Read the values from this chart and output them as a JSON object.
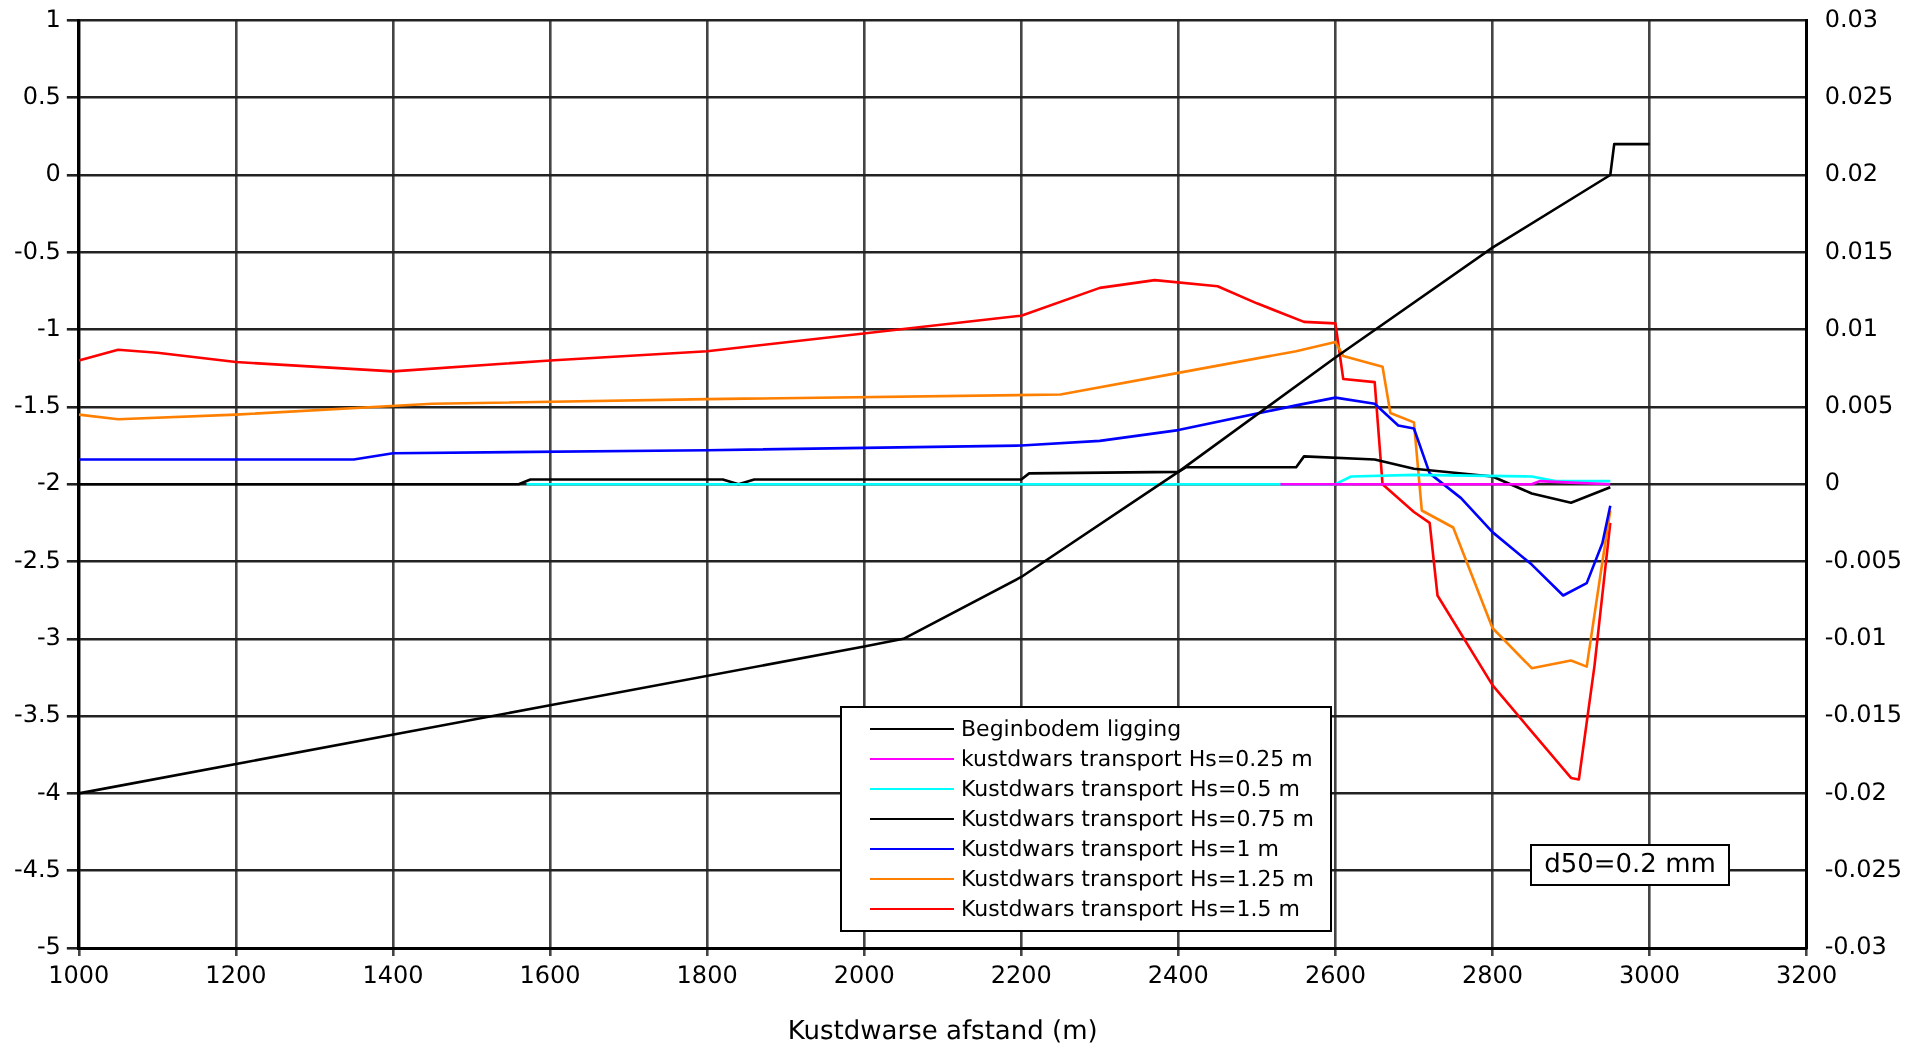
{
  "chart_data": {
    "type": "line",
    "xlabel": "Kustdwarse afstand (m)",
    "xlim": [
      1000,
      3200
    ],
    "xticks": [
      1000,
      1200,
      1400,
      1600,
      1800,
      2000,
      2200,
      2400,
      2600,
      2800,
      3000,
      3200
    ],
    "ylim": [
      -5,
      1
    ],
    "yticks": [
      -5,
      -4.5,
      -4,
      -3.5,
      -3,
      -2.5,
      -2,
      -1.5,
      -1,
      -0.5,
      0,
      0.5,
      1
    ],
    "y2lim": [
      -0.03,
      0.03
    ],
    "y2ticks": [
      -0.03,
      -0.025,
      -0.02,
      -0.015,
      -0.01,
      -0.005,
      0,
      0.005,
      0.01,
      0.015,
      0.02,
      0.025,
      0.03
    ],
    "grid": true,
    "legend": "bottom",
    "marker": "none",
    "annotations": [
      "d50=0.2 mm"
    ],
    "series": [
      {
        "name": "Beginbodem ligging",
        "color": "#000000",
        "x": [
          1000,
          1600,
          2000,
          2050,
          2200,
          2400,
          2600,
          2800,
          2950,
          2955,
          3000
        ],
        "values": [
          -4,
          -3.43,
          -3.05,
          -3.0,
          -2.6,
          -1.92,
          -1.18,
          -0.47,
          0,
          0.2,
          0.2
        ]
      },
      {
        "name": "kustdwars transport Hs=0.25 m",
        "color": "#ff00ff",
        "axis": "y2",
        "x": [
          2530,
          2850,
          2860,
          2900,
          2950
        ],
        "values": [
          0,
          0,
          0.0002,
          0.0001,
          0
        ]
      },
      {
        "name": "Kustdwars transport Hs=0.5 m",
        "color": "#00ffff",
        "axis": "y2",
        "x": [
          1570,
          2600,
          2620,
          2700,
          2850,
          2880,
          2950
        ],
        "values": [
          0,
          0,
          0.0005,
          0.0006,
          0.0005,
          0.0002,
          0.0002
        ]
      },
      {
        "name": "Kustdwars transport Hs=0.75 m",
        "color": "#000000",
        "axis": "y2",
        "x": [
          1000,
          1560,
          1575,
          1820,
          1840,
          1860,
          2200,
          2210,
          2400,
          2410,
          2550,
          2560,
          2650,
          2700,
          2800,
          2850,
          2900,
          2950
        ],
        "values": [
          0,
          0,
          0.0003,
          0.0003,
          0,
          0.0003,
          0.0003,
          0.0007,
          0.0008,
          0.0011,
          0.0011,
          0.0018,
          0.0016,
          0.001,
          0.0005,
          -0.0006,
          -0.0012,
          -0.0002
        ]
      },
      {
        "name": "Kustdwars transport Hs=1 m",
        "color": "#0000ff",
        "axis": "y2",
        "x": [
          1000,
          1350,
          1400,
          1800,
          2200,
          2300,
          2400,
          2550,
          2600,
          2650,
          2680,
          2700,
          2720,
          2760,
          2800,
          2850,
          2890,
          2920,
          2940,
          2950
        ],
        "values": [
          0.0016,
          0.0016,
          0.002,
          0.0022,
          0.0025,
          0.0028,
          0.0035,
          0.0051,
          0.0056,
          0.0052,
          0.0038,
          0.0036,
          0.0007,
          -0.0009,
          -0.0031,
          -0.0052,
          -0.0072,
          -0.0064,
          -0.0038,
          -0.0014
        ]
      },
      {
        "name": "Kustdwars transport Hs=1.25 m",
        "color": "#ff8000",
        "axis": "y2",
        "x": [
          1000,
          1050,
          1200,
          1450,
          1800,
          2250,
          2400,
          2550,
          2600,
          2610,
          2660,
          2670,
          2700,
          2710,
          2750,
          2800,
          2850,
          2900,
          2920,
          2940,
          2950
        ],
        "values": [
          0.0045,
          0.0042,
          0.0045,
          0.0052,
          0.0055,
          0.0058,
          0.0072,
          0.0086,
          0.0092,
          0.0083,
          0.0076,
          0.0046,
          0.004,
          -0.0017,
          -0.0028,
          -0.0093,
          -0.0119,
          -0.0114,
          -0.0118,
          -0.005,
          -0.0017
        ]
      },
      {
        "name": "Kustdwars transport Hs=1.5 m",
        "color": "#ff0000",
        "axis": "y2",
        "x": [
          1000,
          1050,
          1100,
          1200,
          1400,
          1600,
          1800,
          2200,
          2300,
          2370,
          2450,
          2500,
          2560,
          2600,
          2610,
          2650,
          2660,
          2700,
          2720,
          2730,
          2800,
          2850,
          2900,
          2910,
          2930,
          2950
        ],
        "values": [
          0.008,
          0.0087,
          0.0085,
          0.0079,
          0.0073,
          0.008,
          0.0086,
          0.0109,
          0.0127,
          0.0132,
          0.0128,
          0.0117,
          0.0105,
          0.0104,
          0.0068,
          0.0066,
          0,
          -0.0018,
          -0.0025,
          -0.0072,
          -0.013,
          -0.016,
          -0.019,
          -0.0191,
          -0.0117,
          -0.0025
        ]
      }
    ]
  }
}
